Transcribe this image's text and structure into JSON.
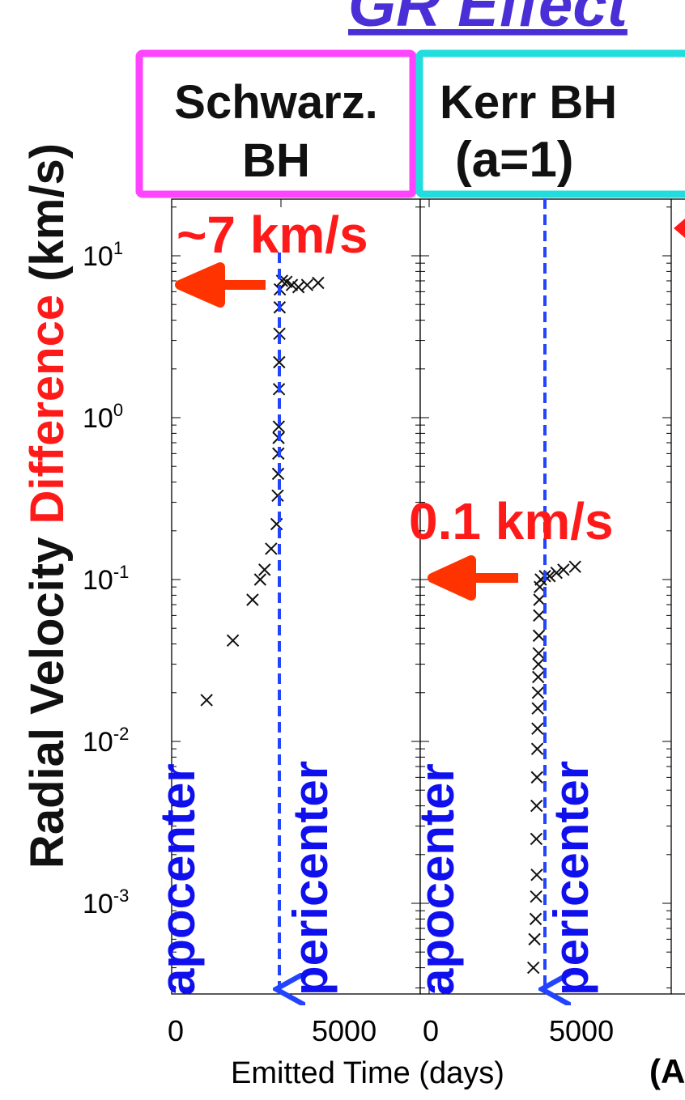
{
  "title": "GR Effect",
  "ylabel": {
    "part1": "Radial Velocity ",
    "part2": "Difference",
    "part3": " (km/s)"
  },
  "xlabel": "Emitted Time (days)",
  "xlabel_extra": "(A",
  "panels": [
    {
      "label_line1": "Schwarz.",
      "label_line2": "BH",
      "box_color": "#ff44ff"
    },
    {
      "label_line1": "Kerr BH",
      "label_line2": "(a=1)",
      "box_color": "#22dddd"
    }
  ],
  "annotations": {
    "schwarz_diff": "~7 km/s",
    "kerr_diff": "0.1 km/s",
    "apocenter": "apocenter",
    "pericenter": "pericenter"
  },
  "colors": {
    "accent_red": "#ff1a1a",
    "arrow_red": "#ff3300",
    "marker_blue": "#1010ee",
    "dashed_blue": "#2244ff"
  },
  "chart_data": [
    {
      "type": "scatter",
      "title": "Schwarz. BH",
      "xlabel": "Emitted Time (days)",
      "ylabel": "Radial Velocity Difference (km/s)",
      "yscale": "log",
      "xlim": [
        -500,
        6500
      ],
      "ylim": [
        0.0002,
        25
      ],
      "x_ticks": [
        "0",
        "5000"
      ],
      "y_ticks": [
        "10^1",
        "10^0",
        "10^-1",
        "10^-2",
        "10^-3"
      ],
      "pericenter_x": 4900,
      "points": [
        [
          1600,
          0.018
        ],
        [
          2800,
          0.042
        ],
        [
          3700,
          0.075
        ],
        [
          4050,
          0.1
        ],
        [
          4250,
          0.115
        ],
        [
          4550,
          0.155
        ],
        [
          4800,
          0.22
        ],
        [
          4850,
          0.33
        ],
        [
          4870,
          0.45
        ],
        [
          4880,
          0.6
        ],
        [
          4890,
          0.75
        ],
        [
          4900,
          0.88
        ],
        [
          4910,
          1.5
        ],
        [
          4920,
          2.2
        ],
        [
          4930,
          3.3
        ],
        [
          4940,
          4.8
        ],
        [
          4950,
          6.2
        ],
        [
          5050,
          7.0
        ],
        [
          5250,
          6.9
        ],
        [
          5500,
          6.6
        ],
        [
          5800,
          6.4
        ],
        [
          6200,
          6.6
        ],
        [
          6700,
          6.8
        ]
      ]
    },
    {
      "type": "scatter",
      "title": "Kerr BH (a=1)",
      "xlabel": "Emitted Time (days)",
      "ylabel": "Radial Velocity Difference (km/s)",
      "yscale": "log",
      "xlim": [
        -500,
        6500
      ],
      "ylim": [
        0.0002,
        25
      ],
      "x_ticks": [
        "0",
        "5000"
      ],
      "y_ticks": [
        "10^1",
        "10^0",
        "10^-1",
        "10^-2",
        "10^-3"
      ],
      "pericenter_x": 4800,
      "points": [
        [
          4500,
          0.0004
        ],
        [
          4550,
          0.0006
        ],
        [
          4600,
          0.0008
        ],
        [
          4620,
          0.0011
        ],
        [
          4650,
          0.0015
        ],
        [
          4630,
          0.0025
        ],
        [
          4640,
          0.004
        ],
        [
          4660,
          0.006
        ],
        [
          4670,
          0.009
        ],
        [
          4680,
          0.012
        ],
        [
          4690,
          0.016
        ],
        [
          4700,
          0.02
        ],
        [
          4710,
          0.025
        ],
        [
          4720,
          0.03
        ],
        [
          4730,
          0.035
        ],
        [
          4740,
          0.045
        ],
        [
          4750,
          0.06
        ],
        [
          4760,
          0.075
        ],
        [
          4780,
          0.09
        ],
        [
          4820,
          0.1
        ],
        [
          5000,
          0.105
        ],
        [
          5200,
          0.105
        ],
        [
          5500,
          0.11
        ],
        [
          5800,
          0.115
        ],
        [
          6300,
          0.12
        ]
      ]
    }
  ]
}
